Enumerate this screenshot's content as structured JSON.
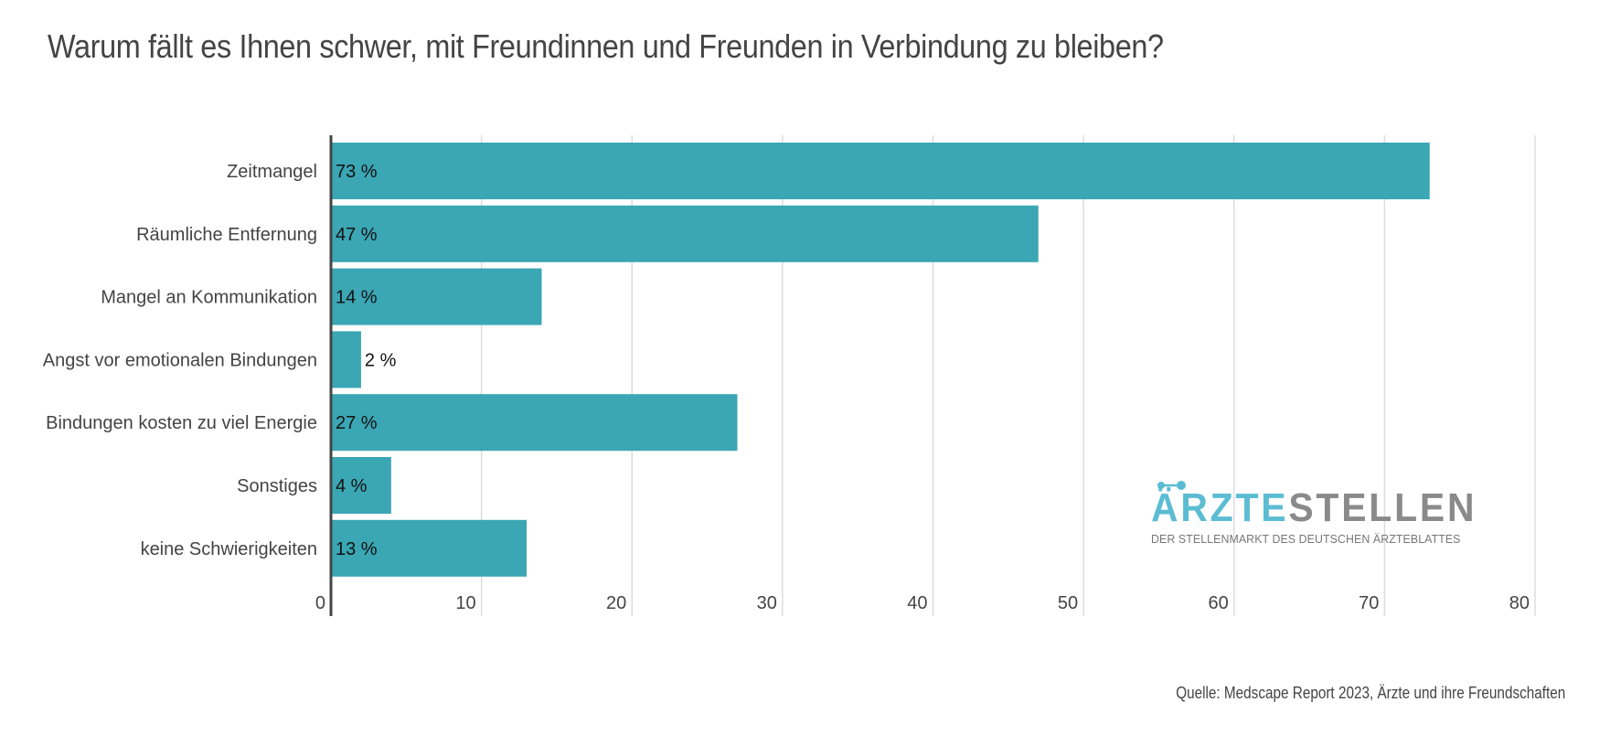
{
  "title": "Warum fällt es Ihnen schwer, mit Freundinnen und Freunden in Verbindung zu bleiben?",
  "source": "Quelle: Medscape Report 2023, Ärzte und ihre Freundschaften",
  "logo": {
    "part1": "ÄRZTE",
    "part2": "STELLEN",
    "tagline": "DER STELLENMARKT DES DEUTSCHEN ÄRZTEBLATTES"
  },
  "colors": {
    "bar": "#3ba6b4",
    "grid": "#dddddd",
    "axis": "#444444",
    "logo_blue": "#5bbcd3",
    "logo_gray": "#8a8a8a"
  },
  "chart_data": {
    "type": "bar",
    "orientation": "horizontal",
    "title": "Warum fällt es Ihnen schwer, mit Freundinnen und Freunden in Verbindung zu bleiben?",
    "categories": [
      "Zeitmangel",
      "Räumliche Entfernung",
      "Mangel an Kommunikation",
      "Angst vor emotionalen Bindungen",
      "Bindungen kosten zu viel Energie",
      "Sonstiges",
      "keine Schwierigkeiten"
    ],
    "values": [
      73,
      47,
      14,
      2,
      27,
      4,
      13
    ],
    "data_labels": [
      "73 %",
      "47 %",
      "14 %",
      "2 %",
      "27 %",
      "4 %",
      "13 %"
    ],
    "xlim": [
      0,
      80
    ],
    "xticks": [
      0,
      10,
      20,
      30,
      40,
      50,
      60,
      70,
      80
    ],
    "xtick_labels": [
      "0",
      "10",
      "20",
      "30",
      "40",
      "50",
      "60",
      "70",
      "80"
    ],
    "xlabel": "",
    "ylabel": "",
    "grid": true,
    "legend": "none"
  }
}
